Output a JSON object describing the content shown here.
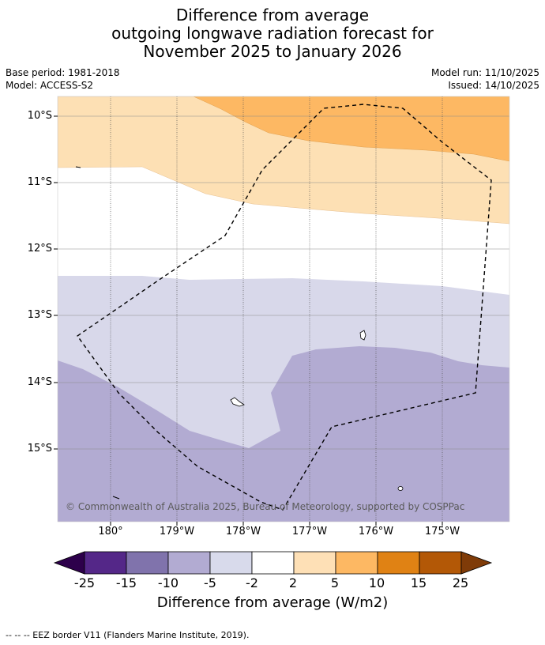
{
  "title": {
    "line1": "Difference from average",
    "line2": "outgoing longwave radiation forecast for",
    "line3": "November 2025 to January 2026"
  },
  "meta": {
    "base_period": "Base period: 1981-2018",
    "model": "Model: ACCESS-S2",
    "model_run": "Model run: 11/10/2025",
    "issued": "Issued: 14/10/2025"
  },
  "map": {
    "latitude_labels": [
      "10°S",
      "11°S",
      "12°S",
      "13°S",
      "14°S",
      "15°S"
    ],
    "longitude_labels": [
      "180°",
      "179°W",
      "178°W",
      "177°W",
      "176°W",
      "175°W"
    ],
    "copyright": "© Commonwealth of Australia 2025, Bureau of Meteorology, supported by COSPPac",
    "colors": {
      "light_orange": "#fde0b4",
      "orange": "#fdb863",
      "light_purple": "#d8d8ea",
      "purple": "#b2abd2",
      "eez_line": "#000000"
    }
  },
  "colorbar": {
    "ticks": [
      "-25",
      "-15",
      "-10",
      "-5",
      "-2",
      "2",
      "5",
      "10",
      "15",
      "25"
    ],
    "colors": [
      "#2d004b",
      "#542788",
      "#8073ac",
      "#b2abd2",
      "#d8daeb",
      "#ffffff",
      "#fee0b6",
      "#fdb863",
      "#e08214",
      "#b35806",
      "#7f3b08"
    ],
    "label": "Difference from average (W/m2)"
  },
  "footnote": "--  --  -- EEZ border V11 (Flanders Marine Institute, 2019)."
}
